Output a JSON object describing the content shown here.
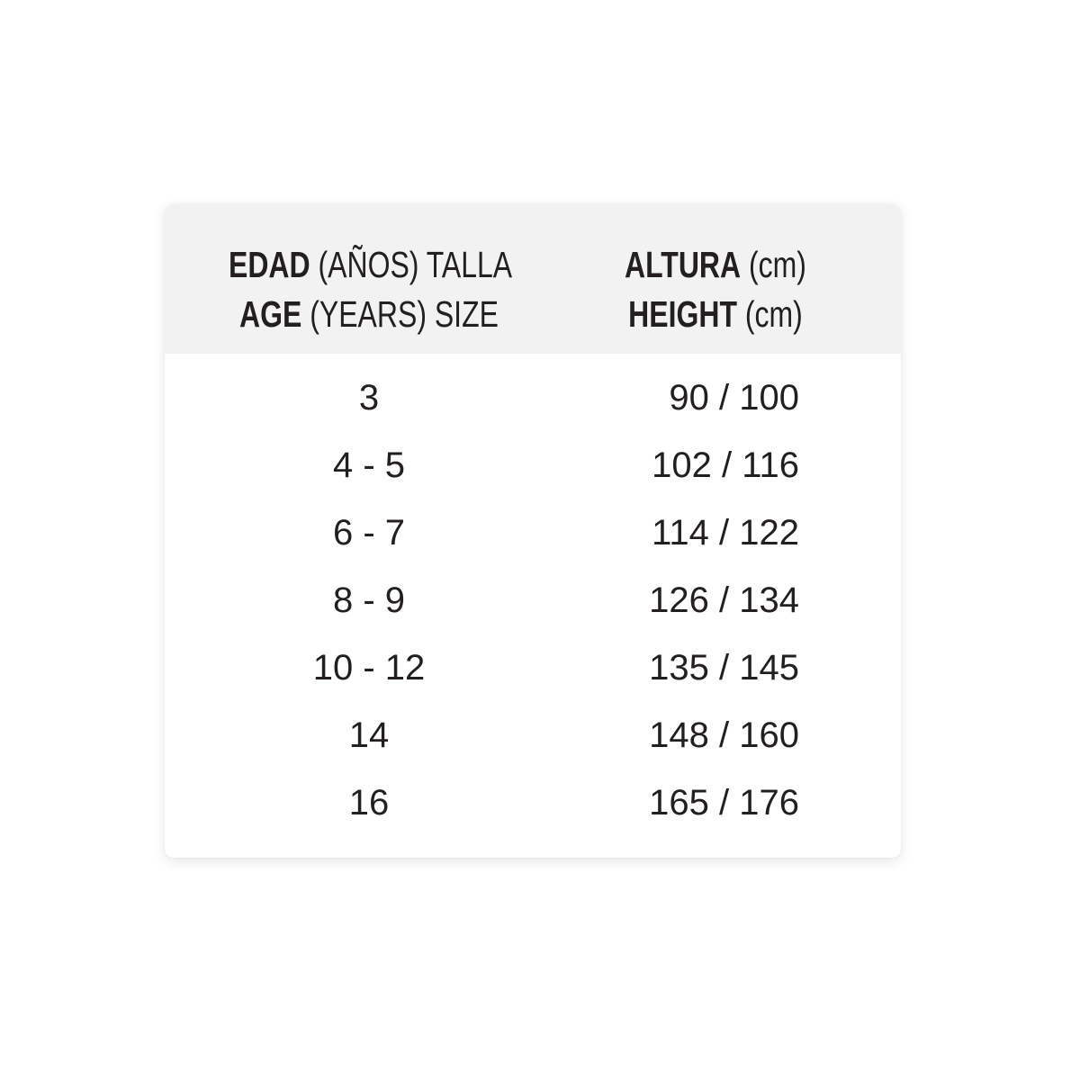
{
  "header": {
    "col1_line1_bold": "EDAD",
    "col1_line1_rest": " (AÑOS) TALLA",
    "col1_line2_bold": "AGE",
    "col1_line2_rest": " (YEARS) SIZE",
    "col2_line1_bold": "ALTURA",
    "col2_line1_rest": " (cm)",
    "col2_line2_bold": "HEIGHT",
    "col2_line2_rest": " (cm)"
  },
  "rows": [
    {
      "age": "3",
      "height": "90 / 100"
    },
    {
      "age": "4 - 5",
      "height": "102 / 116"
    },
    {
      "age": "6 - 7",
      "height": "114 / 122"
    },
    {
      "age": "8 - 9",
      "height": "126 / 134"
    },
    {
      "age": "10 - 12",
      "height": "135 / 145"
    },
    {
      "age": "14",
      "height": "148 / 160"
    },
    {
      "age": "16",
      "height": "165 / 176"
    }
  ],
  "colors": {
    "header_bg": "#f2f2f2",
    "text": "#231f20"
  }
}
